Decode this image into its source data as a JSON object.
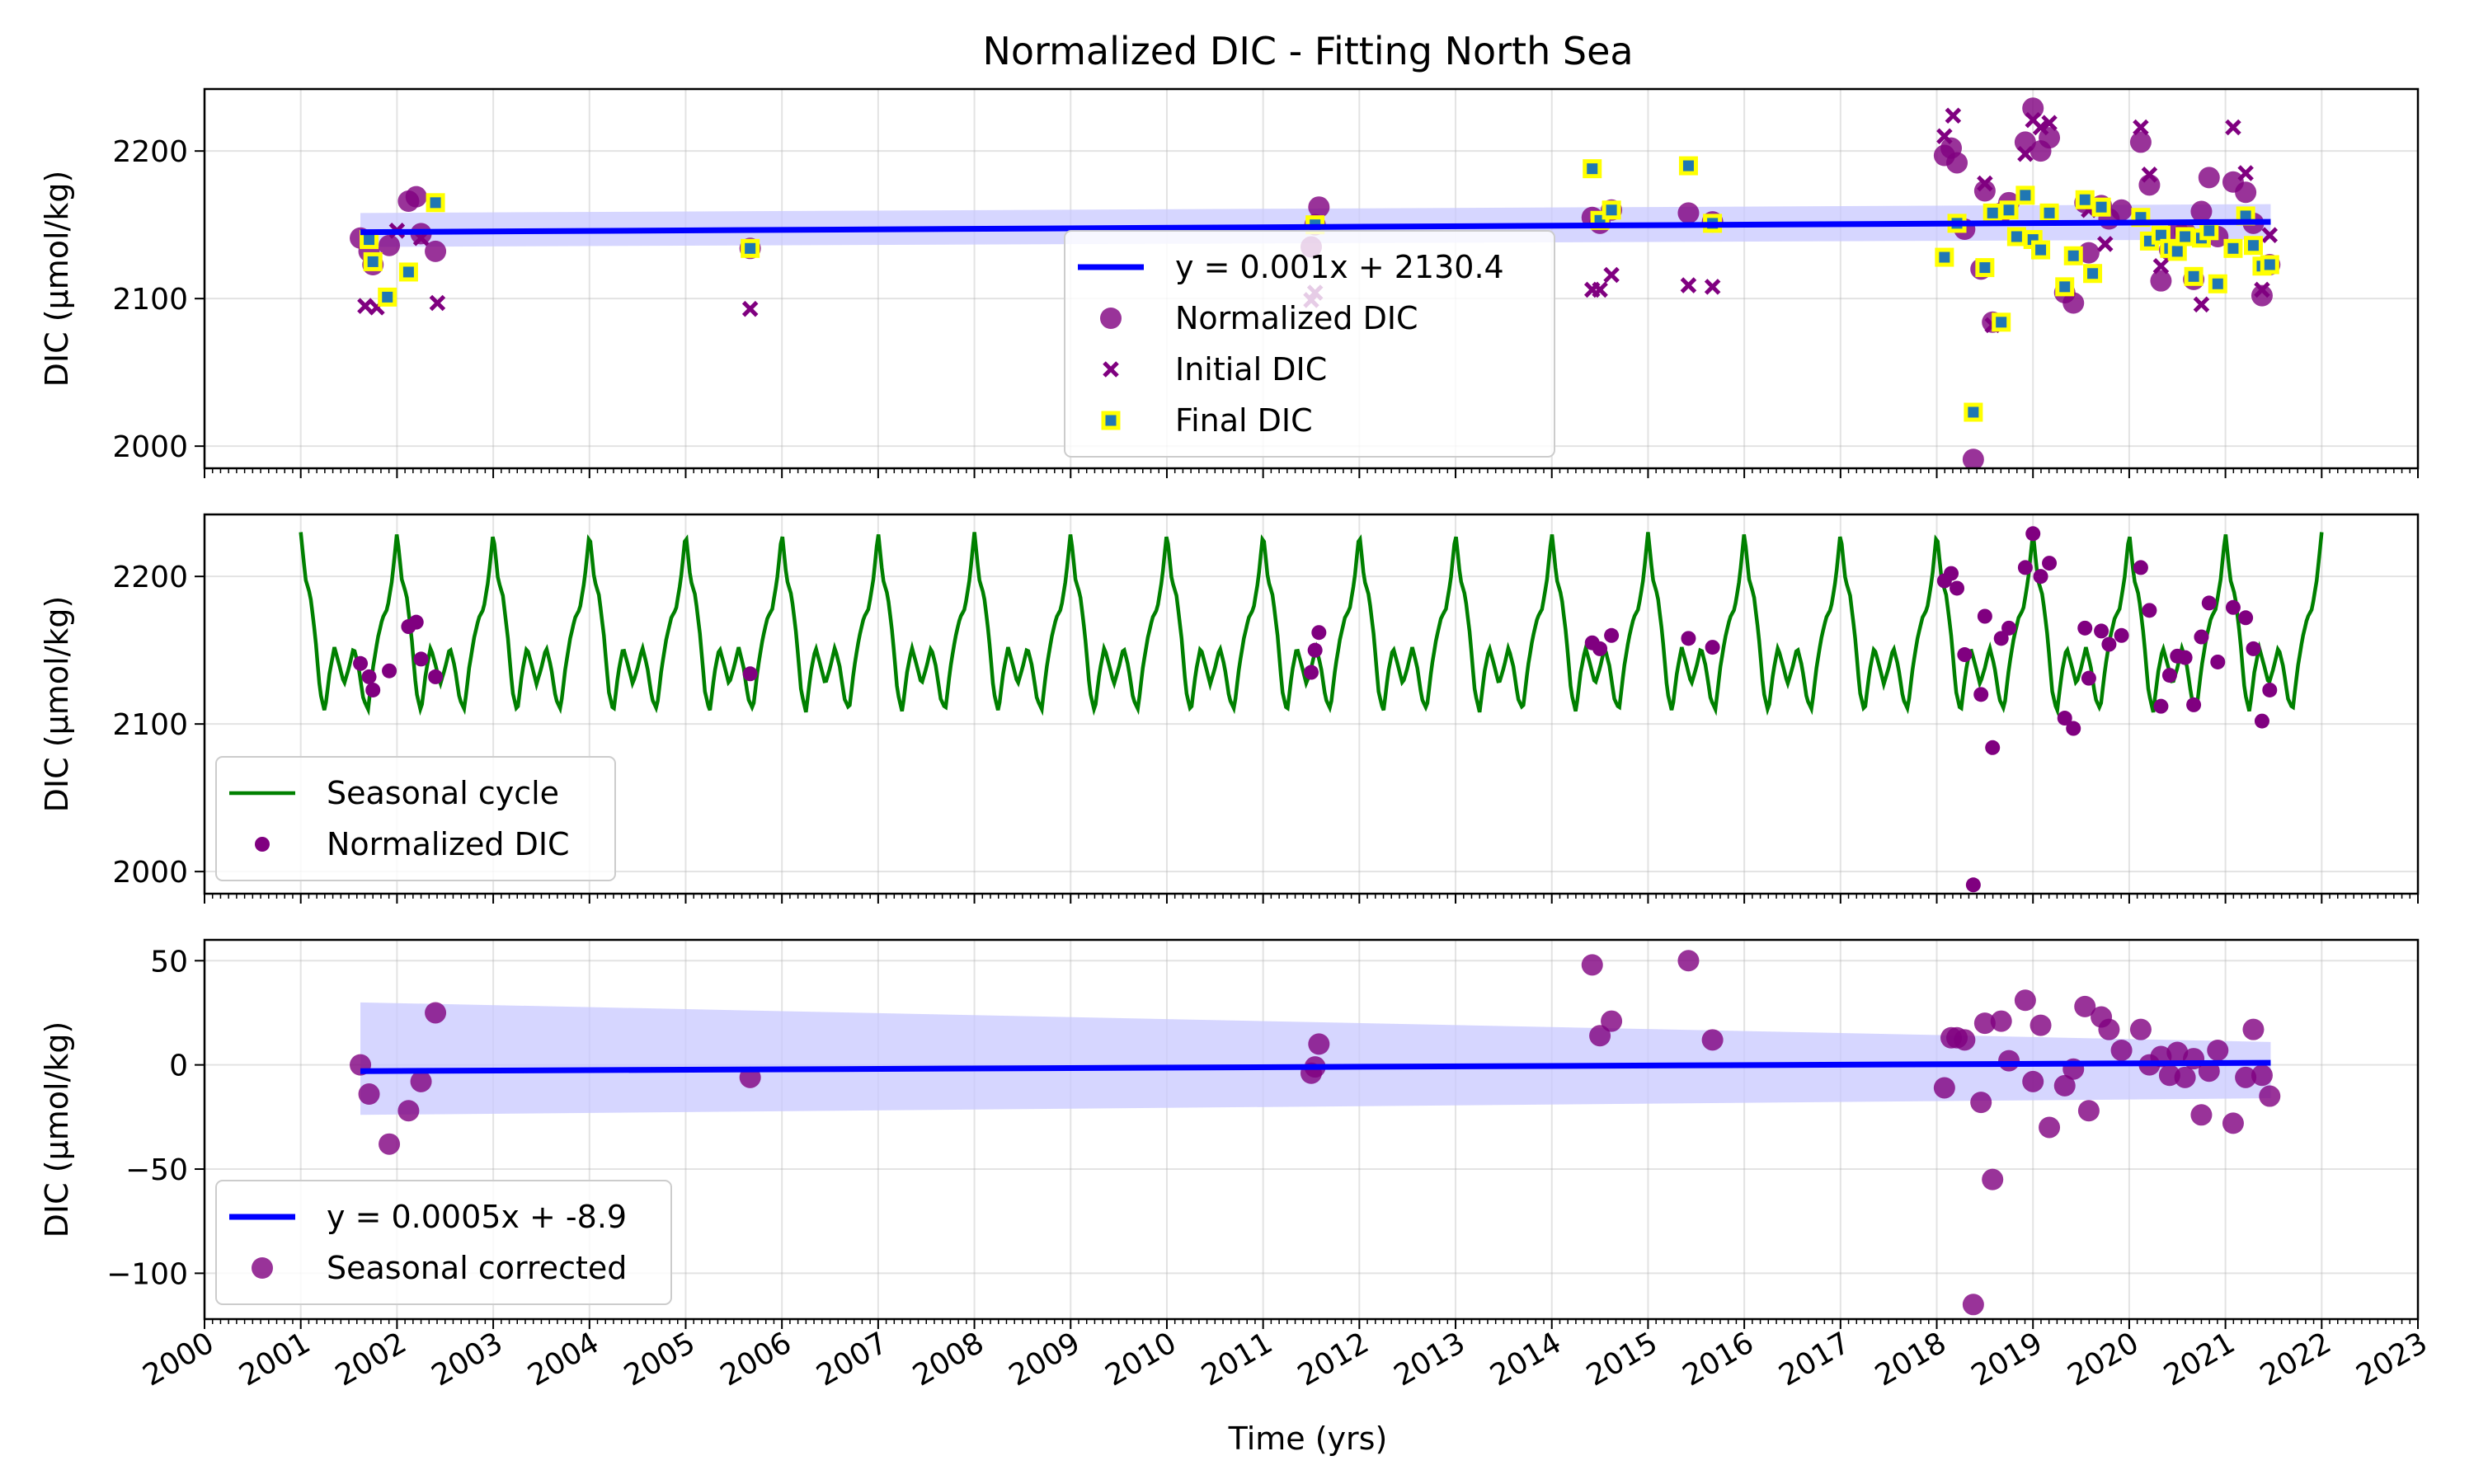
{
  "figure": {
    "title": "Normalized DIC - Fitting North Sea",
    "xlabel": "Time (yrs)"
  },
  "colors": {
    "purple": "#800080",
    "fit_line": "#0000ff",
    "ci_band": "#c8c8ff",
    "seasonal": "#008000",
    "final_edge": "#ffff00",
    "final_face": "#1f77b4"
  },
  "chart_data": [
    {
      "type": "scatter",
      "title": "Normalized DIC - Fitting North Sea",
      "ylabel": "DIC (μmol/kg)",
      "xlim": [
        2000,
        2023
      ],
      "ylim": [
        1985,
        2242
      ],
      "yticks": [
        2000,
        2100,
        2200
      ],
      "xticks": [
        2000,
        2001,
        2002,
        2003,
        2004,
        2005,
        2006,
        2007,
        2008,
        2009,
        2010,
        2011,
        2012,
        2013,
        2014,
        2015,
        2016,
        2017,
        2018,
        2019,
        2020,
        2021,
        2022,
        2023
      ],
      "grid": true,
      "legend": {
        "position": "center",
        "entries": [
          "y = 0.001x + 2130.4",
          "Normalized DIC",
          "Initial DIC",
          "Final DIC"
        ]
      },
      "fit": {
        "label": "y = 0.001x + 2130.4",
        "x": [
          2001.62,
          2021.47
        ],
        "y": [
          2145,
          2152
        ],
        "band_upper": [
          2158,
          2164
        ],
        "band_lower": [
          2135,
          2140
        ]
      },
      "series": [
        {
          "name": "Normalized DIC",
          "marker": "circle",
          "x": [
            2001.62,
            2001.71,
            2001.75,
            2001.92,
            2002.12,
            2002.2,
            2002.25,
            2002.4,
            2005.67,
            2011.5,
            2011.54,
            2011.58,
            2014.42,
            2014.5,
            2014.62,
            2015.42,
            2015.67,
            2018.08,
            2018.15,
            2018.21,
            2018.29,
            2018.38,
            2018.46,
            2018.5,
            2018.58,
            2018.67,
            2018.75,
            2018.92,
            2019.0,
            2019.08,
            2019.17,
            2019.33,
            2019.42,
            2019.54,
            2019.58,
            2019.71,
            2019.79,
            2019.92,
            2020.12,
            2020.21,
            2020.33,
            2020.42,
            2020.5,
            2020.58,
            2020.67,
            2020.75,
            2020.83,
            2020.92,
            2021.08,
            2021.21,
            2021.29,
            2021.38,
            2021.46
          ],
          "y": [
            2141,
            2132,
            2123,
            2136,
            2166,
            2169,
            2144,
            2132,
            2134,
            2135,
            2150,
            2162,
            2155,
            2151,
            2160,
            2158,
            2152,
            2197,
            2202,
            2192,
            2147,
            1991,
            2120,
            2173,
            2084,
            2158,
            2165,
            2206,
            2229,
            2200,
            2209,
            2104,
            2097,
            2165,
            2131,
            2163,
            2154,
            2160,
            2206,
            2177,
            2112,
            2133,
            2146,
            2145,
            2113,
            2159,
            2182,
            2142,
            2179,
            2172,
            2151,
            2102,
            2123
          ]
        },
        {
          "name": "Initial DIC",
          "marker": "x",
          "x": [
            2001.67,
            2001.79,
            2002.0,
            2002.25,
            2002.42,
            2005.67,
            2011.5,
            2011.54,
            2014.42,
            2014.5,
            2014.62,
            2015.42,
            2015.67,
            2018.08,
            2018.17,
            2018.5,
            2018.58,
            2018.92,
            2019.0,
            2019.08,
            2019.17,
            2019.58,
            2019.75,
            2020.12,
            2020.21,
            2020.33,
            2020.75,
            2021.08,
            2021.21,
            2021.38,
            2021.46
          ],
          "y": [
            2095,
            2094,
            2146,
            2141,
            2097,
            2093,
            2099,
            2104,
            2106,
            2106,
            2116,
            2109,
            2108,
            2210,
            2224,
            2178,
            2082,
            2198,
            2221,
            2216,
            2219,
            2160,
            2137,
            2216,
            2184,
            2122,
            2096,
            2216,
            2185,
            2106,
            2143
          ]
        },
        {
          "name": "Final DIC",
          "marker": "square",
          "x": [
            2001.71,
            2001.75,
            2001.9,
            2002.12,
            2002.4,
            2005.67,
            2011.54,
            2014.42,
            2014.5,
            2014.62,
            2015.42,
            2015.67,
            2018.08,
            2018.21,
            2018.38,
            2018.5,
            2018.58,
            2018.67,
            2018.75,
            2018.83,
            2018.92,
            2019.0,
            2019.08,
            2019.17,
            2019.33,
            2019.42,
            2019.54,
            2019.62,
            2019.71,
            2020.12,
            2020.21,
            2020.33,
            2020.42,
            2020.5,
            2020.58,
            2020.67,
            2020.75,
            2020.83,
            2020.92,
            2021.08,
            2021.21,
            2021.29,
            2021.38,
            2021.46
          ],
          "y": [
            2140,
            2125,
            2101,
            2118,
            2165,
            2134,
            2150,
            2188,
            2153,
            2160,
            2190,
            2151,
            2128,
            2151,
            2023,
            2121,
            2158,
            2084,
            2160,
            2142,
            2170,
            2140,
            2133,
            2158,
            2108,
            2129,
            2167,
            2117,
            2162,
            2155,
            2139,
            2143,
            2134,
            2132,
            2142,
            2115,
            2141,
            2146,
            2110,
            2134,
            2156,
            2136,
            2122,
            2123
          ]
        }
      ]
    },
    {
      "type": "line",
      "ylabel": "DIC (μmol/kg)",
      "xlim": [
        2000,
        2023
      ],
      "ylim": [
        1985,
        2242
      ],
      "yticks": [
        2000,
        2100,
        2200
      ],
      "grid": true,
      "legend": {
        "position": "lower-left",
        "entries": [
          "Seasonal cycle",
          "Normalized DIC"
        ]
      },
      "seasonal_cycle": {
        "name": "Seasonal cycle",
        "x_start": 2001.0,
        "x_end": 2022.0,
        "period": 1.0,
        "phase": [
          0.0,
          0.05,
          0.1,
          0.15,
          0.2,
          0.25,
          0.3,
          0.35,
          0.4,
          0.45,
          0.5,
          0.55,
          0.6,
          0.65,
          0.7,
          0.75,
          0.8,
          0.85,
          0.9,
          0.95,
          1.0
        ],
        "values": [
          2230,
          2198,
          2187,
          2160,
          2122,
          2108,
          2135,
          2152,
          2140,
          2127,
          2138,
          2152,
          2139,
          2117,
          2110,
          2138,
          2158,
          2172,
          2178,
          2198,
          2230
        ]
      },
      "series": [
        {
          "name": "Normalized DIC",
          "marker": "circle-small",
          "ref": "panel1.normalized"
        }
      ]
    },
    {
      "type": "scatter",
      "ylabel": "DIC (μmol/kg)",
      "xlim": [
        2000,
        2023
      ],
      "ylim": [
        -122,
        60
      ],
      "yticks": [
        -100,
        -50,
        0,
        50
      ],
      "grid": true,
      "legend": {
        "position": "lower-left",
        "entries": [
          "y = 0.0005x + -8.9",
          "Seasonal corrected"
        ]
      },
      "fit": {
        "label": "y = 0.0005x + -8.9",
        "x": [
          2001.62,
          2021.47
        ],
        "y": [
          -3,
          1
        ],
        "band_upper": [
          30,
          11
        ],
        "band_lower": [
          -24,
          -16
        ]
      },
      "series": [
        {
          "name": "Seasonal corrected",
          "marker": "circle",
          "x": [
            2001.62,
            2001.71,
            2001.92,
            2002.12,
            2002.25,
            2002.4,
            2005.67,
            2011.5,
            2011.54,
            2011.58,
            2014.42,
            2014.5,
            2014.62,
            2015.42,
            2015.67,
            2018.08,
            2018.15,
            2018.21,
            2018.29,
            2018.38,
            2018.46,
            2018.5,
            2018.58,
            2018.67,
            2018.75,
            2018.92,
            2019.0,
            2019.08,
            2019.17,
            2019.33,
            2019.42,
            2019.54,
            2019.58,
            2019.71,
            2019.79,
            2019.92,
            2020.12,
            2020.21,
            2020.33,
            2020.42,
            2020.5,
            2020.58,
            2020.67,
            2020.75,
            2020.83,
            2020.92,
            2021.08,
            2021.21,
            2021.29,
            2021.38,
            2021.46
          ],
          "y": [
            0,
            -14,
            -38,
            -22,
            -8,
            25,
            -6,
            -4,
            -1,
            10,
            48,
            14,
            21,
            50,
            12,
            -11,
            13,
            13,
            12,
            -115,
            -18,
            20,
            -55,
            21,
            2,
            31,
            -8,
            19,
            -30,
            -10,
            -2,
            28,
            -22,
            23,
            17,
            7,
            17,
            0,
            4,
            -5,
            6,
            -6,
            3,
            -24,
            -3,
            7,
            -28,
            -6,
            17,
            -5,
            -15
          ]
        }
      ]
    }
  ]
}
